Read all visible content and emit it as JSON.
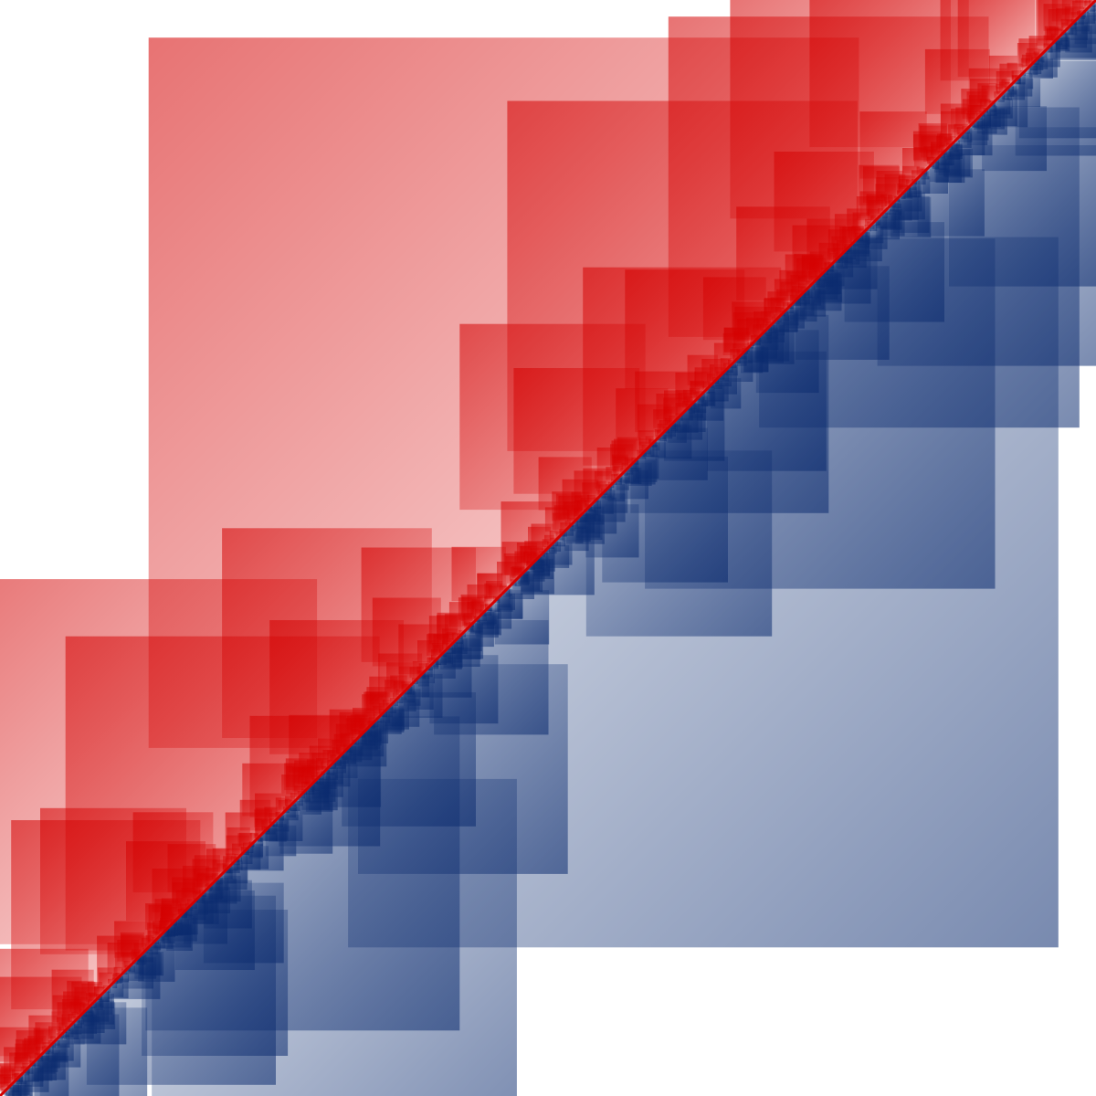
{
  "artwork": {
    "kind": "nested-squares-diagonal-pattern",
    "background_color": "#ffffff",
    "upper_group": {
      "name": "red-squares",
      "color": "#d40000",
      "position": "above-diagonal"
    },
    "lower_group": {
      "name": "blue-squares",
      "color": "#0a2a6e",
      "position": "below-diagonal"
    },
    "diagonal_direction": "bottom-left-to-top-right"
  }
}
